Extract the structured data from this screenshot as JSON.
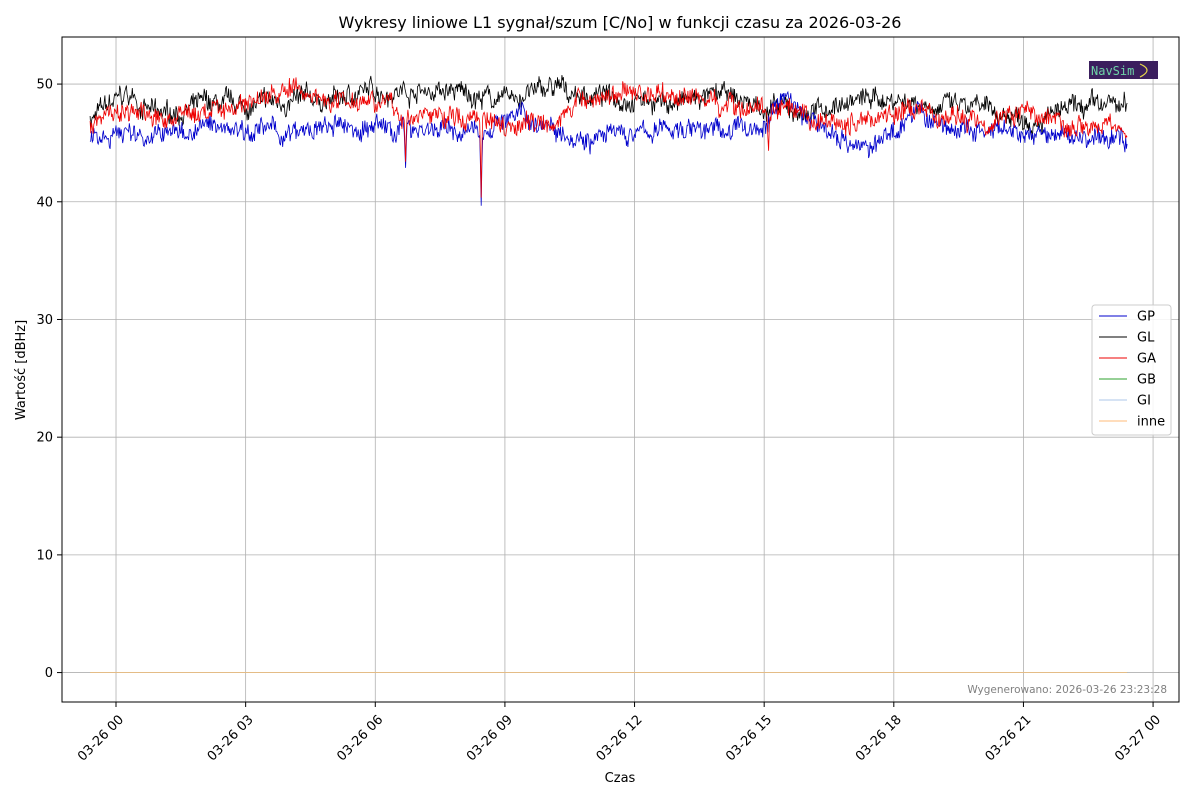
{
  "chart_data": {
    "type": "line",
    "title": "Wykresy liniowe L1 sygnał/szum [C/No] w funkcji czasu za 2026-03-26",
    "xlabel": "Czas",
    "ylabel": "Wartość [dBHz]",
    "x_range_hours": [
      -1.25,
      24.6
    ],
    "ylim": [
      -2.5,
      54
    ],
    "x_ticks": [
      {
        "hour": 0,
        "label": "03-26 00"
      },
      {
        "hour": 3,
        "label": "03-26 03"
      },
      {
        "hour": 6,
        "label": "03-26 06"
      },
      {
        "hour": 9,
        "label": "03-26 09"
      },
      {
        "hour": 12,
        "label": "03-26 12"
      },
      {
        "hour": 15,
        "label": "03-26 15"
      },
      {
        "hour": 18,
        "label": "03-26 18"
      },
      {
        "hour": 21,
        "label": "03-26 21"
      },
      {
        "hour": 24,
        "label": "03-27 00"
      }
    ],
    "y_ticks": [
      0,
      10,
      20,
      30,
      40,
      50
    ],
    "grid": true,
    "legend_position": "right",
    "series": [
      {
        "name": "GP",
        "color": "#0000cc",
        "x": [
          -0.6,
          0,
          1,
          2,
          3,
          4,
          5,
          6,
          6.7,
          7,
          8,
          8.45,
          9,
          10,
          11,
          12,
          13,
          14,
          15,
          15.5,
          16,
          17,
          17.5,
          18,
          18.5,
          19,
          20,
          21,
          22,
          23,
          23.4
        ],
        "y": [
          45.8,
          46.0,
          45.6,
          46.3,
          46.5,
          45.6,
          46.2,
          46.3,
          46.2,
          46.5,
          45.8,
          45.8,
          47.3,
          46.7,
          45.5,
          45.7,
          46.3,
          46.1,
          46.3,
          49.3,
          47.0,
          45.2,
          44.4,
          46.0,
          48.0,
          46.4,
          45.8,
          45.5,
          45.6,
          45.2,
          45.5
        ],
        "dips": [
          {
            "x": 6.7,
            "y": 42.5
          },
          {
            "x": 8.45,
            "y": 39.4
          }
        ]
      },
      {
        "name": "GL",
        "color": "#000000",
        "x": [
          -0.6,
          0,
          0.3,
          1,
          2,
          3,
          4,
          5,
          6,
          7,
          8,
          9,
          10,
          11,
          12,
          13,
          14,
          15,
          16,
          17,
          18,
          19,
          20,
          21,
          22,
          23,
          23.4
        ],
        "y": [
          47.0,
          48.5,
          49.0,
          47.2,
          48.2,
          48.0,
          48.5,
          48.6,
          49.5,
          49.5,
          49.2,
          48.6,
          49.6,
          49.0,
          48.9,
          48.3,
          49.0,
          48.0,
          47.5,
          48.6,
          48.8,
          48.3,
          47.7,
          47.2,
          47.6,
          48.2,
          48.0
        ]
      },
      {
        "name": "GA",
        "color": "#ee0000",
        "x": [
          -0.6,
          0,
          1,
          2,
          3,
          4,
          5,
          6,
          6.7,
          7,
          8,
          8.45,
          9,
          10,
          11,
          12,
          13,
          14,
          15,
          15.5,
          16,
          17,
          18,
          19,
          20,
          21,
          22,
          23,
          23.4
        ],
        "y": [
          46.5,
          48.0,
          47.0,
          47.5,
          48.5,
          49.5,
          48.7,
          49.2,
          46.8,
          47.5,
          47.0,
          47.5,
          46.8,
          47.0,
          48.8,
          49.4,
          49.0,
          48.5,
          47.8,
          47.5,
          46.5,
          46.7,
          47.8,
          47.2,
          47.0,
          47.8,
          46.8,
          46.5,
          45.8
        ],
        "dips": [
          {
            "x": 6.7,
            "y": 43.0
          },
          {
            "x": 8.45,
            "y": 40.0
          },
          {
            "x": 15.1,
            "y": 44.0
          }
        ]
      },
      {
        "name": "GB",
        "color": "#2ca02c",
        "x": [
          -0.6,
          23.4
        ],
        "y": [
          0,
          0
        ]
      },
      {
        "name": "GI",
        "color": "#aec7e8",
        "x": [
          -0.6,
          23.4
        ],
        "y": [
          0,
          0
        ]
      },
      {
        "name": "inne",
        "color": "#ffbb78",
        "x": [
          -0.6,
          23.4
        ],
        "y": [
          0,
          0
        ]
      }
    ],
    "footer": "Wygenerowano: 2026-03-26 23:23:28",
    "logo_text": "NavSim"
  }
}
